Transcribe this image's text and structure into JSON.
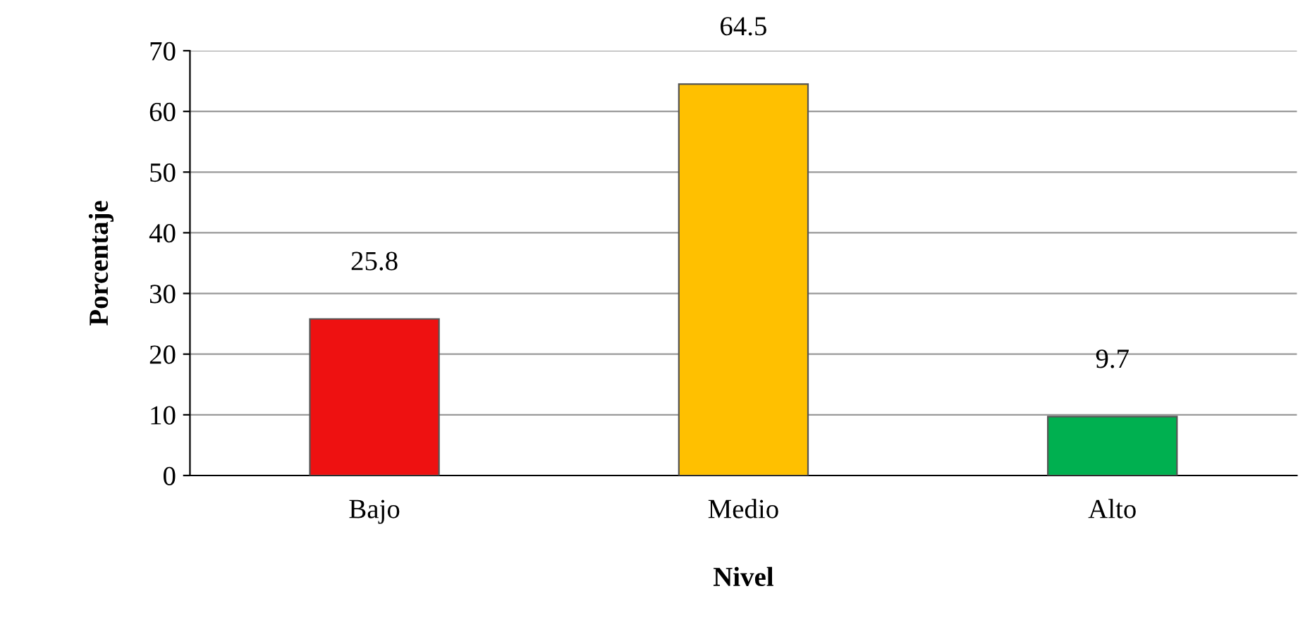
{
  "chart_data": {
    "type": "bar",
    "categories": [
      "Bajo",
      "Medio",
      "Alto"
    ],
    "values": [
      25.8,
      64.5,
      9.7
    ],
    "colors": [
      "#ee1111",
      "#ffc000",
      "#00b050"
    ],
    "xlabel": "Nivel",
    "ylabel": "Porcentaje",
    "ylim": [
      0,
      70
    ],
    "yticks": [
      0,
      10,
      20,
      30,
      40,
      50,
      60,
      70
    ],
    "grid": "y",
    "data_labels": true
  }
}
